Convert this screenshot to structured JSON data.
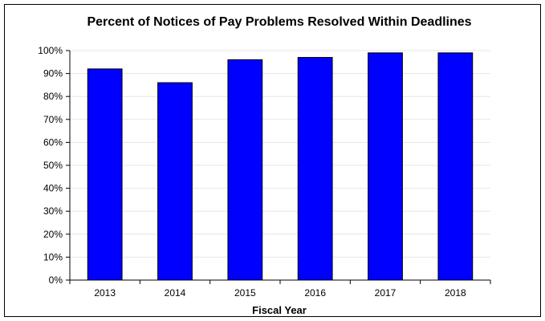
{
  "chart_data": {
    "type": "bar",
    "title": "Percent of Notices of Pay Problems Resolved Within Deadlines",
    "xlabel": "Fiscal Year",
    "ylabel": "",
    "categories": [
      "2013",
      "2014",
      "2015",
      "2016",
      "2017",
      "2018"
    ],
    "series": [
      {
        "values": [
          92,
          86,
          96,
          97,
          99,
          99
        ]
      }
    ],
    "ylim": [
      0,
      100
    ],
    "yticks": [
      "0%",
      "10%",
      "20%",
      "30%",
      "40%",
      "50%",
      "60%",
      "70%",
      "80%",
      "90%",
      "100%"
    ],
    "grid": true,
    "legend": "none",
    "bar_color": "#0000FF",
    "grid_color": "#E6E6E6"
  }
}
